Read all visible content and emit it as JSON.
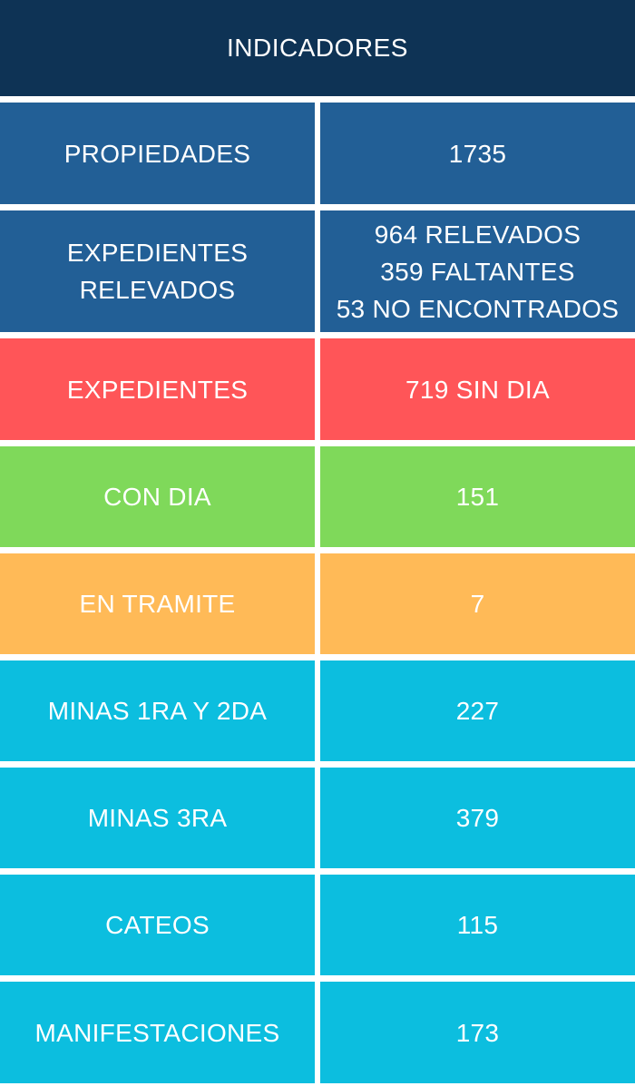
{
  "header": {
    "title": "INDICADORES",
    "color": "#0e3355"
  },
  "colors": {
    "blue": "#225f96",
    "red": "#ff5558",
    "green": "#7fd95a",
    "orange": "#ffba57",
    "cyan": "#0cbedf"
  },
  "rows": [
    {
      "label": "PROPIEDADES",
      "value": "1735",
      "color": "#225f96"
    },
    {
      "label_lines": [
        "EXPEDIENTES",
        "RELEVADOS"
      ],
      "value_lines": [
        "964 RELEVADOS",
        "359 FALTANTES",
        "53 NO ENCONTRADOS"
      ],
      "color": "#225f96"
    },
    {
      "label": "EXPEDIENTES",
      "value": "719 SIN DIA",
      "color": "#ff5558"
    },
    {
      "label": "CON DIA",
      "value": "151",
      "color": "#7fd95a"
    },
    {
      "label": "EN TRAMITE",
      "value": "7",
      "color": "#ffba57"
    },
    {
      "label": "MINAS 1RA Y 2DA",
      "value": "227",
      "color": "#0cbedf"
    },
    {
      "label": "MINAS 3RA",
      "value": "379",
      "color": "#0cbedf"
    },
    {
      "label": "CATEOS",
      "value": "115",
      "color": "#0cbedf"
    },
    {
      "label": "MANIFESTACIONES",
      "value": "173",
      "color": "#0cbedf"
    }
  ]
}
